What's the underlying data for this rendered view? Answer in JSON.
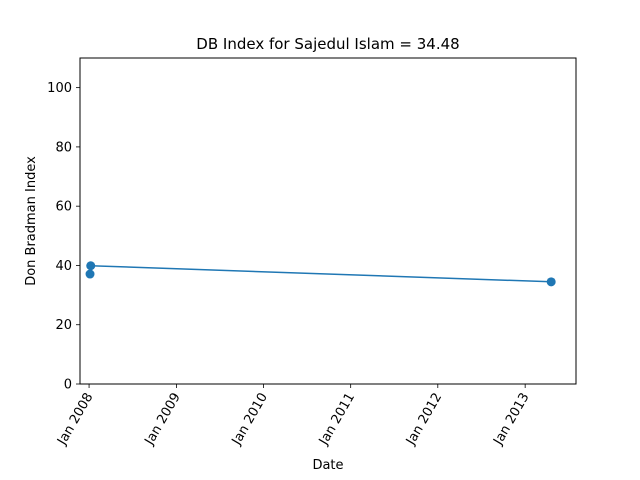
{
  "chart_data": {
    "type": "line",
    "title": "DB Index for Sajedul Islam = 34.48",
    "xlabel": "Date",
    "ylabel": "Don Bradman Index",
    "ylim": [
      0,
      110
    ],
    "xlim": [
      "2007-11-24",
      "2013-08-02"
    ],
    "x_ticks": [
      "2008-01-01",
      "2009-01-01",
      "2010-01-01",
      "2011-01-01",
      "2012-01-01",
      "2013-01-01"
    ],
    "x_tick_labels": [
      "Jan 2008",
      "Jan 2009",
      "Jan 2010",
      "Jan 2011",
      "Jan 2012",
      "Jan 2013"
    ],
    "y_ticks": [
      0,
      20,
      40,
      60,
      80,
      100
    ],
    "y_tick_labels": [
      "0",
      "20",
      "40",
      "60",
      "80",
      "100"
    ],
    "grid": false,
    "series": [
      {
        "color": "#1f77b4",
        "points": [
          {
            "x": "2008-01-05",
            "y": 37.1
          },
          {
            "x": "2008-01-08",
            "y": 39.9
          },
          {
            "x": "2013-04-20",
            "y": 34.48
          }
        ]
      }
    ]
  }
}
